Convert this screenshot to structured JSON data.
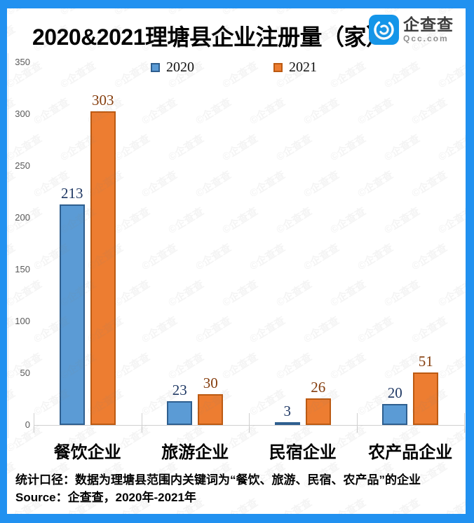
{
  "header": {
    "title": "2020&2021理塘县企业注册量（家）",
    "logo": {
      "name": "企查查",
      "domain": "Qcc.com"
    }
  },
  "watermark": {
    "text": "©企查查"
  },
  "footer": {
    "line1": "统计口径：数据为理塘县范围内关键词为“餐饮、旅游、民宿、农产品”的企业",
    "line2": "Source：企查查，2020年-2021年"
  },
  "colors": {
    "frame_blue": "#2191F0",
    "logo_blue": "#1495E9",
    "axis_gray": "#d0d0d0",
    "tick_text_gray": "#595959"
  },
  "chart_data": {
    "type": "bar",
    "title": "2020&2021理塘县企业注册量（家）",
    "categories": [
      "餐饮企业",
      "旅游企业",
      "民宿企业",
      "农产品企业"
    ],
    "series": [
      {
        "name": "2020",
        "values": [
          213,
          23,
          3,
          20
        ],
        "fill": "#5B9BD5",
        "border": "#2F5F8F",
        "label_color": "#1F3864"
      },
      {
        "name": "2021",
        "values": [
          303,
          30,
          26,
          51
        ],
        "fill": "#ED7D31",
        "border": "#BC5A12",
        "label_color": "#843C0C"
      }
    ],
    "xlabel": "",
    "ylabel": "",
    "ylim": [
      0,
      350
    ],
    "yticks": [
      0,
      50,
      100,
      150,
      200,
      250,
      300,
      350
    ],
    "grid": false,
    "legend_position": "top"
  }
}
